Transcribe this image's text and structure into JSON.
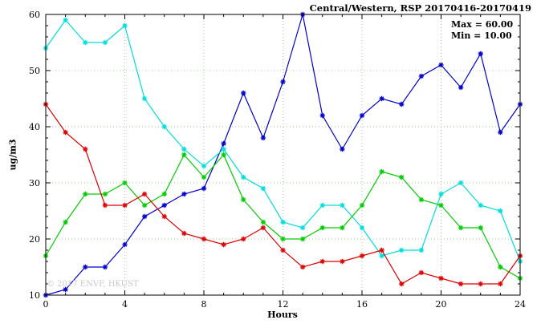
{
  "header": {
    "title": "Central/Western, RSP 20170416-20170419"
  },
  "annotations": {
    "max": "Max = 60.00",
    "min": "Min = 10.00"
  },
  "watermark": "© 2017 ENVF, HKUST",
  "chart_data": {
    "type": "line",
    "title": "Central/Western, RSP 20170416-20170419",
    "xlabel": "Hours",
    "ylabel": "ug/m3",
    "xlim": [
      0,
      24
    ],
    "ylim": [
      10,
      60
    ],
    "xticks": [
      0,
      4,
      8,
      12,
      16,
      20,
      24
    ],
    "yticks": [
      10,
      20,
      30,
      40,
      50,
      60
    ],
    "grid": "dotted",
    "legend": "none",
    "x": [
      0,
      1,
      2,
      3,
      4,
      5,
      6,
      7,
      8,
      9,
      10,
      11,
      12,
      13,
      14,
      15,
      16,
      17,
      18,
      19,
      20,
      21,
      22,
      23,
      24
    ],
    "series": [
      {
        "name": "blue",
        "color": "#0000cc",
        "values": [
          10,
          11,
          15,
          15,
          19,
          24,
          26,
          28,
          29,
          37,
          46,
          38,
          48,
          60,
          42,
          36,
          42,
          45,
          44,
          49,
          51,
          47,
          53,
          39,
          44
        ]
      },
      {
        "name": "cyan",
        "color": "#00dddd",
        "values": [
          54,
          59,
          55,
          55,
          58,
          45,
          40,
          36,
          33,
          36,
          31,
          29,
          23,
          22,
          26,
          26,
          22,
          17,
          18,
          18,
          28,
          30,
          26,
          25,
          16
        ]
      },
      {
        "name": "green",
        "color": "#00cc00",
        "values": [
          17,
          23,
          28,
          28,
          30,
          26,
          28,
          35,
          31,
          35,
          27,
          23,
          20,
          20,
          22,
          22,
          26,
          32,
          31,
          27,
          26,
          22,
          22,
          15,
          13
        ]
      },
      {
        "name": "red",
        "color": "#dd0000",
        "values": [
          44,
          39,
          36,
          26,
          26,
          28,
          24,
          21,
          20,
          19,
          20,
          22,
          18,
          15,
          16,
          16,
          17,
          18,
          12,
          14,
          13,
          12,
          12,
          12,
          17
        ]
      }
    ],
    "max_value": 60.0,
    "min_value": 10.0,
    "grid_color": "#9ccc9c"
  }
}
